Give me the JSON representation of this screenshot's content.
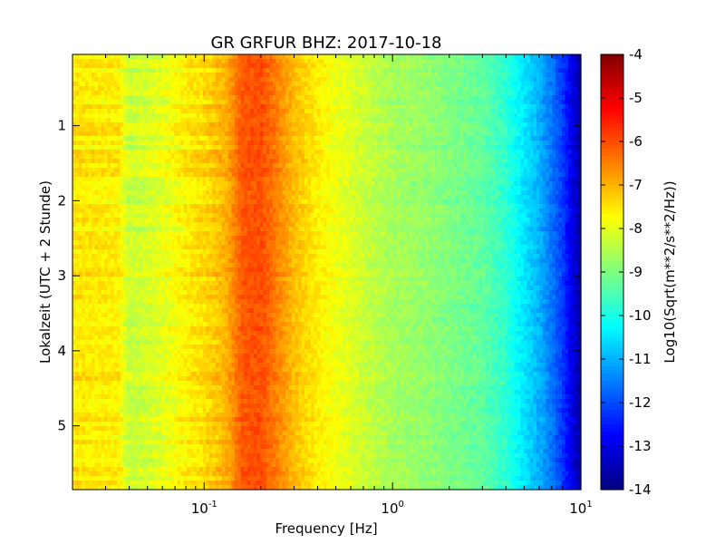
{
  "chart_data": {
    "type": "heatmap",
    "title": "GR GRFUR BHZ: 2017-10-18",
    "xlabel": "Frequency [Hz]",
    "ylabel": "Lokalzeit (UTC + 2 Stunde)",
    "colorbar_label": "Log10(Sqrt(m**2/s**2/Hz))",
    "x_scale": "log",
    "xlim": [
      0.02,
      10
    ],
    "x_ticks": [
      {
        "base": "10",
        "exp": "-1",
        "value": 0.1
      },
      {
        "base": "10",
        "exp": "0",
        "value": 1
      },
      {
        "base": "10",
        "exp": "1",
        "value": 10
      }
    ],
    "ylim": [
      0.05,
      5.85
    ],
    "y_inverted": true,
    "y_ticks": [
      "1",
      "2",
      "3",
      "4",
      "5"
    ],
    "y_tick_values": [
      1,
      2,
      3,
      4,
      5
    ],
    "clim": [
      -14,
      -4
    ],
    "colorbar_ticks": [
      "-4",
      "-5",
      "-6",
      "-7",
      "-8",
      "-9",
      "-10",
      "-11",
      "-12",
      "-13",
      "-14"
    ],
    "colorbar_tick_values": [
      -4,
      -5,
      -6,
      -7,
      -8,
      -9,
      -10,
      -11,
      -12,
      -13,
      -14
    ],
    "colormap": "jet",
    "spectrum_profile": {
      "frequency_hz": [
        0.02,
        0.035,
        0.04,
        0.06,
        0.08,
        0.1,
        0.13,
        0.16,
        0.2,
        0.25,
        0.3,
        0.4,
        0.55,
        0.8,
        1.0,
        1.5,
        2.0,
        3.0,
        4.0,
        5.0,
        6.0,
        7.0,
        8.0,
        9.0,
        10.0
      ],
      "log10_amplitude": [
        -7.5,
        -7.6,
        -8.3,
        -8.0,
        -7.6,
        -7.4,
        -7.0,
        -6.1,
        -6.0,
        -6.6,
        -7.1,
        -7.6,
        -8.0,
        -8.4,
        -8.6,
        -8.8,
        -9.0,
        -9.3,
        -9.8,
        -10.5,
        -11.0,
        -11.6,
        -12.2,
        -13.0,
        -13.6
      ]
    },
    "grid": false
  }
}
